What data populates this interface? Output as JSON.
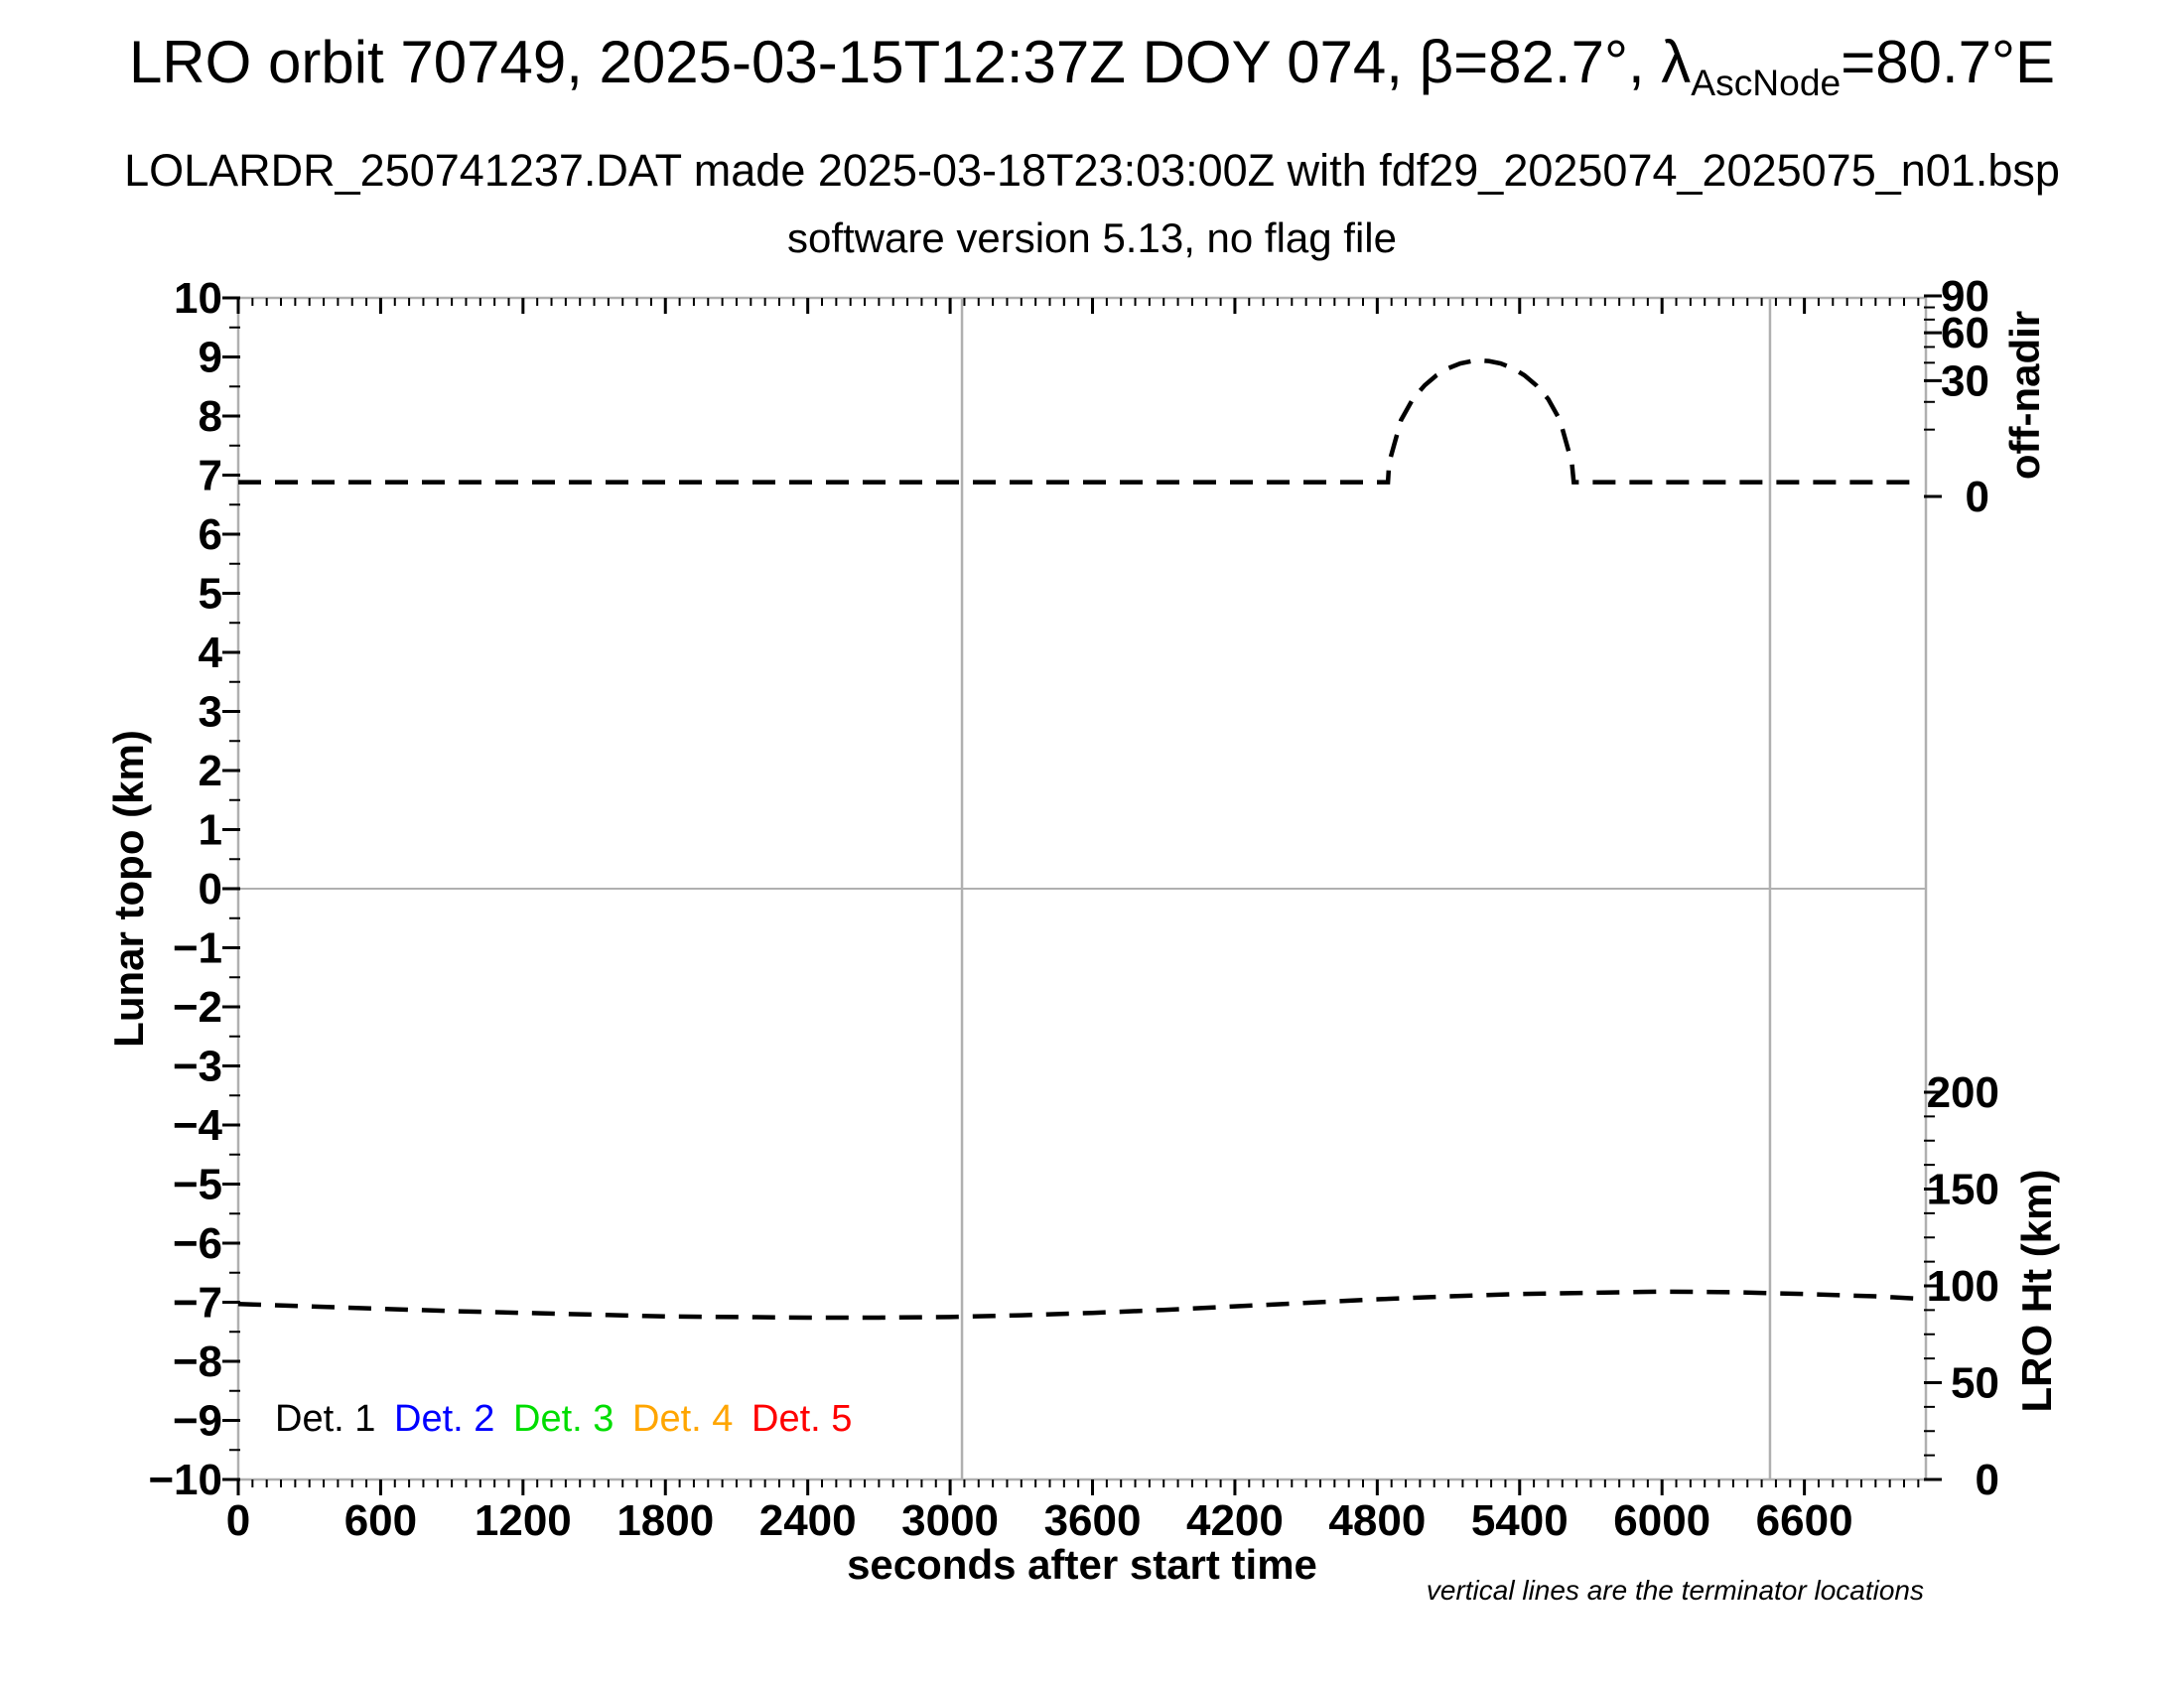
{
  "header": {
    "title_main": "LRO orbit 70749, 2025-03-15T12:37Z DOY 074, β=82.7°, λ",
    "title_subscript": "AscNode",
    "title_end": "=80.7°E",
    "subtitle": "LOLARDR_250741237.DAT made 2025-03-18T23:03:00Z with fdf29_2025074_2025075_n01.bsp",
    "line3": "software version 5.13, no flag file"
  },
  "chart_data": {
    "type": "line",
    "xlabel": "seconds after start time",
    "ylabel_left": "Lunar topo (km)",
    "ylabel_right_top": "off-nadir",
    "ylabel_right_bottom": "LRO Ht (km)",
    "annotation": "vertical lines are the terminator locations",
    "x_range": [
      0,
      7112
    ],
    "y_left_range": [
      -10,
      10
    ],
    "x_major_ticks": [
      0,
      600,
      1200,
      1800,
      2400,
      3000,
      3600,
      4200,
      4800,
      5400,
      6000,
      6600
    ],
    "x_minor_step": 60,
    "y_left_ticks": [
      -10,
      -9,
      -8,
      -7,
      -6,
      -5,
      -4,
      -3,
      -2,
      -1,
      0,
      1,
      2,
      3,
      4,
      5,
      6,
      7,
      8,
      9,
      10
    ],
    "y_left_minor_step": 0.5,
    "off_nadir_ticks": [
      0,
      30,
      60,
      90
    ],
    "off_nadir_minor_ticks": [
      10,
      20,
      40,
      50,
      70,
      80
    ],
    "lro_ht_ticks": [
      0,
      50,
      100,
      150,
      200
    ],
    "lro_ht_minor_step": 12.5,
    "terminator_lines_seconds": [
      3050,
      6455
    ],
    "zero_line_y": 0,
    "grid": false,
    "legend_position": "bottom-left inside plot",
    "series": [
      {
        "name": "off-nadir angle (plotted against left axis units)",
        "color": "#000000",
        "style": "dashed",
        "baseline_deg_approx": 0.5,
        "peak_deg_approx": 41,
        "bump_start_s": 4845,
        "bump_peak_s": 5235,
        "bump_end_s": 5628,
        "points": [
          [
            0,
            6.88
          ],
          [
            600,
            6.88
          ],
          [
            1200,
            6.88
          ],
          [
            1800,
            6.88
          ],
          [
            2400,
            6.88
          ],
          [
            3000,
            6.88
          ],
          [
            3600,
            6.88
          ],
          [
            4200,
            6.88
          ],
          [
            4700,
            6.88
          ],
          [
            4845,
            6.88
          ],
          [
            4850,
            7.21
          ],
          [
            4900,
            7.93
          ],
          [
            4950,
            8.29
          ],
          [
            5000,
            8.52
          ],
          [
            5050,
            8.69
          ],
          [
            5100,
            8.81
          ],
          [
            5150,
            8.89
          ],
          [
            5200,
            8.93
          ],
          [
            5235,
            8.94
          ],
          [
            5270,
            8.93
          ],
          [
            5320,
            8.89
          ],
          [
            5370,
            8.81
          ],
          [
            5420,
            8.69
          ],
          [
            5470,
            8.52
          ],
          [
            5520,
            8.29
          ],
          [
            5570,
            7.93
          ],
          [
            5620,
            7.21
          ],
          [
            5628,
            6.88
          ],
          [
            5700,
            6.88
          ],
          [
            6300,
            6.88
          ],
          [
            6900,
            6.88
          ],
          [
            7080,
            6.88
          ]
        ]
      },
      {
        "name": "LRO height (plotted against left axis units)",
        "color": "#000000",
        "style": "dashed",
        "height_km_range_approx": [
          83,
          97
        ],
        "height_km_approx": [
          91,
          90,
          88.5,
          87.3,
          86,
          85.1,
          84.2,
          83.6,
          83.3,
          83.3,
          83.6,
          84.5,
          85.7,
          87.3,
          89.1,
          90.9,
          92.7,
          94.3,
          95.5,
          96.4,
          96.7,
          96.4,
          95.8,
          94.6,
          93.4
        ],
        "points": [
          [
            0,
            -7.03
          ],
          [
            300,
            -7.07
          ],
          [
            600,
            -7.11
          ],
          [
            900,
            -7.15
          ],
          [
            1200,
            -7.18
          ],
          [
            1500,
            -7.21
          ],
          [
            1800,
            -7.24
          ],
          [
            2100,
            -7.25
          ],
          [
            2400,
            -7.26
          ],
          [
            2700,
            -7.26
          ],
          [
            3000,
            -7.25
          ],
          [
            3300,
            -7.22
          ],
          [
            3600,
            -7.18
          ],
          [
            3900,
            -7.13
          ],
          [
            4200,
            -7.07
          ],
          [
            4500,
            -7.01
          ],
          [
            4800,
            -6.95
          ],
          [
            5100,
            -6.9
          ],
          [
            5400,
            -6.86
          ],
          [
            5700,
            -6.84
          ],
          [
            6000,
            -6.82
          ],
          [
            6300,
            -6.83
          ],
          [
            6600,
            -6.86
          ],
          [
            6900,
            -6.9
          ],
          [
            7080,
            -6.94
          ]
        ]
      }
    ],
    "legend": [
      {
        "label": "Det. 1",
        "color": "#000000"
      },
      {
        "label": "Det. 2",
        "color": "#0000ff"
      },
      {
        "label": "Det. 3",
        "color": "#00dd00"
      },
      {
        "label": "Det. 4",
        "color": "#ffa500"
      },
      {
        "label": "Det. 5",
        "color": "#ff0000"
      }
    ],
    "colors": {
      "frame": "#b0b0b0",
      "gridline": "#b0b0b0",
      "tick": "#000000",
      "curve": "#000000"
    }
  }
}
